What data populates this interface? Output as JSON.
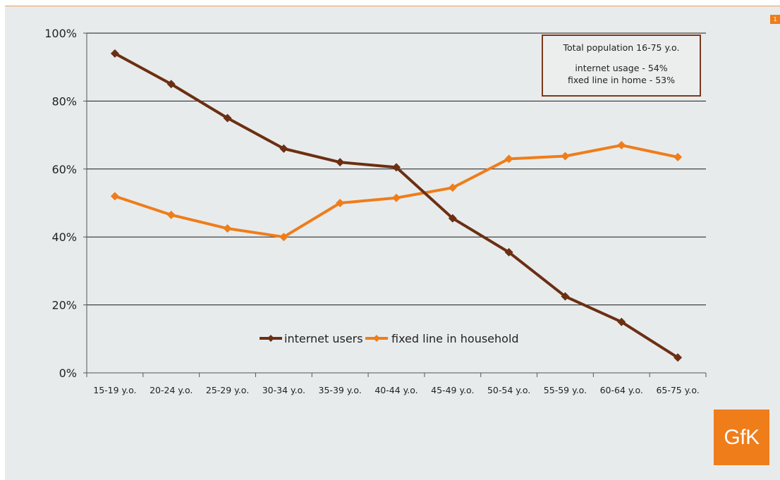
{
  "page_number": "1",
  "info_box": {
    "line1": "Total population 16-75 y.o.",
    "line2": "internet usage - 54%",
    "line3": "fixed line in home - 53%"
  },
  "logo_text": "GfK",
  "chart_data": {
    "type": "line",
    "categories": [
      "15-19 y.o.",
      "20-24 y.o.",
      "25-29 y.o.",
      "30-34 y.o.",
      "35-39 y.o.",
      "40-44 y.o.",
      "45-49 y.o.",
      "50-54 y.o.",
      "55-59 y.o.",
      "60-64 y.o.",
      "65-75 y.o."
    ],
    "yticks": [
      "0%",
      "20%",
      "40%",
      "60%",
      "80%",
      "100%"
    ],
    "ylim": [
      0,
      100
    ],
    "grid": true,
    "legend_position": "bottom-center, inside plot",
    "series": [
      {
        "name": "internet users",
        "color": "#6b2f12",
        "values": [
          94,
          85,
          75,
          66,
          62,
          60.5,
          45.5,
          35.5,
          22.5,
          15,
          4.5
        ]
      },
      {
        "name": "fixed line in household",
        "color": "#ef7d1a",
        "values": [
          52,
          46.5,
          42.5,
          40,
          50,
          51.5,
          54.5,
          63,
          63.8,
          67,
          63.5
        ]
      }
    ]
  }
}
